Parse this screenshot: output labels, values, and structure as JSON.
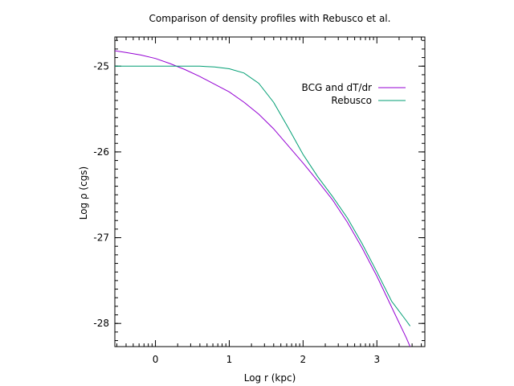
{
  "chart_data": {
    "type": "line",
    "title": "Comparison of density profiles with Rebusco et al.",
    "xlabel": "Log r (kpc)",
    "ylabel": "Log ρ (cgs)",
    "xlim": [
      -0.55,
      3.65
    ],
    "ylim": [
      -28.27,
      -24.66
    ],
    "xticks": [
      0,
      1,
      2,
      3
    ],
    "yticks": [
      -25,
      -26,
      -27,
      -28
    ],
    "grid": false,
    "legend": "top-right",
    "series": [
      {
        "name": "BCG and dT/dr",
        "color": "#9400d3",
        "x": [
          -0.55,
          -0.4,
          -0.2,
          0.0,
          0.2,
          0.4,
          0.6,
          0.8,
          1.0,
          1.2,
          1.4,
          1.6,
          1.8,
          2.0,
          2.2,
          2.4,
          2.6,
          2.8,
          3.0,
          3.2,
          3.4,
          3.45
        ],
        "y": [
          -24.82,
          -24.84,
          -24.87,
          -24.91,
          -24.97,
          -25.04,
          -25.12,
          -25.21,
          -25.3,
          -25.42,
          -25.56,
          -25.73,
          -25.93,
          -26.13,
          -26.34,
          -26.56,
          -26.82,
          -27.12,
          -27.45,
          -27.81,
          -28.17,
          -28.27
        ]
      },
      {
        "name": "Rebusco",
        "color": "#009e73",
        "x": [
          -0.55,
          -0.4,
          -0.2,
          0.0,
          0.2,
          0.4,
          0.6,
          0.8,
          1.0,
          1.2,
          1.4,
          1.6,
          1.8,
          2.0,
          2.2,
          2.4,
          2.6,
          2.8,
          3.0,
          3.2,
          3.4,
          3.45
        ],
        "y": [
          -25.0,
          -25.0,
          -25.0,
          -25.0,
          -25.0,
          -25.0,
          -25.0,
          -25.01,
          -25.03,
          -25.08,
          -25.2,
          -25.42,
          -25.72,
          -26.03,
          -26.29,
          -26.52,
          -26.77,
          -27.07,
          -27.4,
          -27.74,
          -27.97,
          -28.03
        ]
      }
    ]
  }
}
